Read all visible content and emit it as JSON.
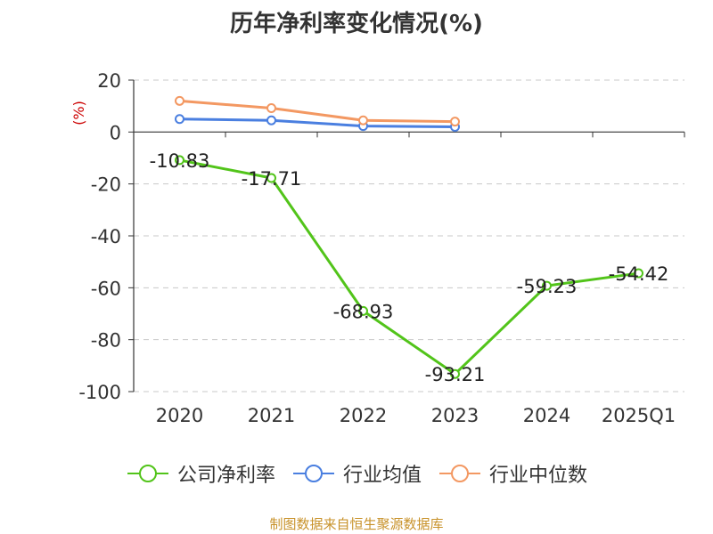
{
  "chart_data": {
    "type": "line",
    "title": "历年净利率变化情况(%)",
    "ylabel": "(%)",
    "categories": [
      "2020",
      "2021",
      "2022",
      "2023",
      "2024",
      "2025Q1"
    ],
    "ylim": [
      -100,
      20
    ],
    "yticks": [
      "20",
      "0",
      "-20",
      "-40",
      "-60",
      "-80",
      "-100"
    ],
    "ytick_values": [
      20,
      0,
      -20,
      -40,
      -60,
      -80,
      -100
    ],
    "grid": true,
    "legend_position": "bottom",
    "series": [
      {
        "name": "公司净利率",
        "color": "#52c41a",
        "show_labels": true,
        "labels": [
          "-10.83",
          "-17.71",
          "-68.93",
          "-93.21",
          "-59.23",
          "-54.42"
        ],
        "values": [
          -10.83,
          -17.71,
          -68.93,
          -93.21,
          -59.23,
          -54.42
        ]
      },
      {
        "name": "行业均值",
        "color": "#4a7fe0",
        "show_labels": false,
        "values": [
          5.0,
          4.5,
          2.3,
          2.0,
          null,
          null
        ]
      },
      {
        "name": "行业中位数",
        "color": "#f39862",
        "show_labels": false,
        "values": [
          12.0,
          9.2,
          4.5,
          4.0,
          null,
          null
        ]
      }
    ]
  },
  "source": "制图数据来自恒生聚源数据库"
}
